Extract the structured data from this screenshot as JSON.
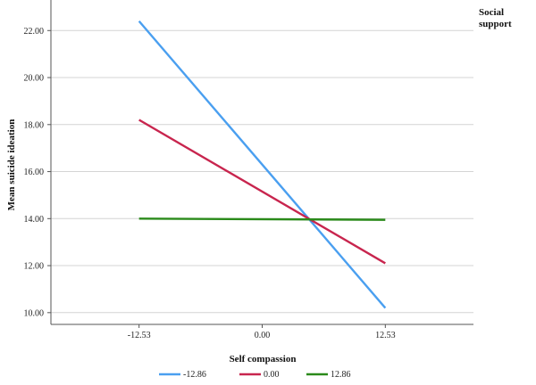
{
  "chart_data": {
    "type": "line",
    "xlabel": "Self compassion",
    "ylabel": "Mean suicide ideation",
    "x_categories": [
      "-12.53",
      "0.00",
      "12.53"
    ],
    "x_values": [
      -12.53,
      0.0,
      12.53
    ],
    "xlim": [
      -21.5,
      21.5
    ],
    "ylim": [
      9.5,
      23.3
    ],
    "y_ticks": [
      10,
      12,
      14,
      16,
      18,
      20,
      22
    ],
    "y_tick_labels": [
      "10.00",
      "12.00",
      "14.00",
      "16.00",
      "18.00",
      "20.00",
      "22.00"
    ],
    "grid": true,
    "legend_title": "Social support",
    "series": [
      {
        "name": "-12.86",
        "color": "#4a9ff0",
        "x": [
          -12.53,
          12.53
        ],
        "y": [
          22.4,
          10.2
        ]
      },
      {
        "name": "0.00",
        "color": "#c8254e",
        "x": [
          -12.53,
          12.53
        ],
        "y": [
          18.2,
          12.1
        ]
      },
      {
        "name": "12.86",
        "color": "#2a8a1a",
        "x": [
          -12.53,
          12.53
        ],
        "y": [
          14.0,
          13.95
        ]
      }
    ]
  }
}
